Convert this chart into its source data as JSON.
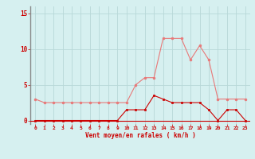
{
  "x": [
    0,
    1,
    2,
    3,
    4,
    5,
    6,
    7,
    8,
    9,
    10,
    11,
    12,
    13,
    14,
    15,
    16,
    17,
    18,
    19,
    20,
    21,
    22,
    23
  ],
  "rafales": [
    3,
    2.5,
    2.5,
    2.5,
    2.5,
    2.5,
    2.5,
    2.5,
    2.5,
    2.5,
    2.5,
    5,
    6,
    6,
    11.5,
    11.5,
    11.5,
    8.5,
    10.5,
    8.5,
    3,
    3,
    3,
    3
  ],
  "moyen": [
    0,
    0,
    0,
    0,
    0,
    0,
    0,
    0,
    0,
    0,
    1.5,
    1.5,
    1.5,
    3.5,
    3,
    2.5,
    2.5,
    2.5,
    2.5,
    1.5,
    0,
    1.5,
    1.5,
    0
  ],
  "bg_color": "#d6f0f0",
  "grid_color": "#b8d8d8",
  "line_color_rafales": "#e87878",
  "line_color_moyen": "#cc0000",
  "xlabel": "Vent moyen/en rafales ( km/h )",
  "xlabel_color": "#cc0000",
  "tick_color": "#cc0000",
  "spine_color": "#888888",
  "hline_color": "#cc0000",
  "ylim": [
    -0.5,
    16
  ],
  "yticks": [
    0,
    5,
    10,
    15
  ],
  "xlim": [
    -0.5,
    23.5
  ]
}
